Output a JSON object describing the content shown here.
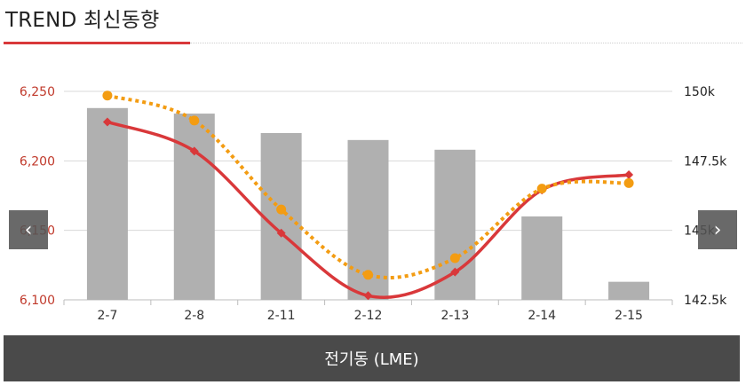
{
  "header": {
    "title": "TREND 최신동향"
  },
  "footer": {
    "label": "전기동 (LME)"
  },
  "nav": {
    "prev_icon": "‹",
    "next_icon": "›"
  },
  "colors": {
    "bar": "#b0b0b0",
    "line_red": "#d9383a",
    "line_orange": "#f39c12",
    "left_axis": "#c0392b",
    "title_accent": "#d9383a"
  },
  "chart_data": {
    "type": "bar",
    "categories": [
      "2-7",
      "2-8",
      "2-11",
      "2-12",
      "2-13",
      "2-14",
      "2-15"
    ],
    "left_axis": {
      "ticks": [
        "6,250",
        "6,200",
        "6,150",
        "6,100"
      ],
      "range": [
        6100,
        6250
      ]
    },
    "right_axis": {
      "ticks": [
        "150k",
        "147.5k",
        "145k",
        "142.5k"
      ],
      "range": [
        142.5,
        150
      ]
    },
    "bars": {
      "axis": "left",
      "values": [
        6238,
        6234,
        6220,
        6215,
        6208,
        6160,
        6113
      ]
    },
    "series": [
      {
        "axis": "left",
        "type": "line",
        "style": "solid",
        "values": [
          6228,
          6207,
          6148,
          6103,
          6120,
          6179,
          6190
        ]
      },
      {
        "axis": "left",
        "type": "line",
        "style": "dotted",
        "values": [
          6247,
          6229,
          6165,
          6118,
          6130,
          6180,
          6184
        ]
      }
    ],
    "grid": true
  }
}
